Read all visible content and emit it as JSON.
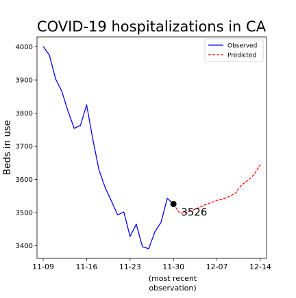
{
  "chart_data": {
    "type": "line",
    "title": "COVID-19 hospitalizations in CA",
    "xlabel": "(most recent\nobservation)",
    "ylabel": "Beds in use",
    "xlim": [
      "2020-11-08",
      "2020-12-15"
    ],
    "ylim": [
      3362,
      4030
    ],
    "x_tick_labels": [
      "11-09",
      "11-16",
      "11-23",
      "11-30",
      "12-07",
      "12-14"
    ],
    "x_tick_dates": [
      "2020-11-09",
      "2020-11-16",
      "2020-11-23",
      "2020-11-30",
      "2020-12-07",
      "2020-12-14"
    ],
    "y_ticks": [
      3400,
      3500,
      3600,
      3700,
      3800,
      3900,
      4000
    ],
    "grid": false,
    "legend_position": "top-right",
    "series": [
      {
        "name": "Observed",
        "color": "#0000ff",
        "style": "solid",
        "x": [
          "2020-11-09",
          "2020-11-10",
          "2020-11-11",
          "2020-11-12",
          "2020-11-13",
          "2020-11-14",
          "2020-11-15",
          "2020-11-16",
          "2020-11-17",
          "2020-11-18",
          "2020-11-19",
          "2020-11-20",
          "2020-11-21",
          "2020-11-22",
          "2020-11-23",
          "2020-11-24",
          "2020-11-25",
          "2020-11-26",
          "2020-11-27",
          "2020-11-28",
          "2020-11-29",
          "2020-11-30"
        ],
        "values": [
          4001,
          3975,
          3903,
          3866,
          3806,
          3754,
          3763,
          3825,
          3721,
          3628,
          3575,
          3535,
          3493,
          3502,
          3428,
          3465,
          3397,
          3391,
          3442,
          3471,
          3543,
          3526
        ]
      },
      {
        "name": "Predicted",
        "color": "#ff0000",
        "style": "dashed",
        "x": [
          "2020-11-30",
          "2020-12-01",
          "2020-12-02",
          "2020-12-03",
          "2020-12-04",
          "2020-12-05",
          "2020-12-06",
          "2020-12-07",
          "2020-12-08",
          "2020-12-09",
          "2020-12-10",
          "2020-12-11",
          "2020-12-12",
          "2020-12-13",
          "2020-12-14"
        ],
        "values": [
          3526,
          3498,
          3500,
          3507,
          3514,
          3523,
          3530,
          3537,
          3541,
          3549,
          3559,
          3584,
          3597,
          3615,
          3645
        ]
      }
    ],
    "annotations": [
      {
        "text": "3526",
        "x": "2020-11-30",
        "y": 3526,
        "marker": "black-dot"
      }
    ]
  }
}
